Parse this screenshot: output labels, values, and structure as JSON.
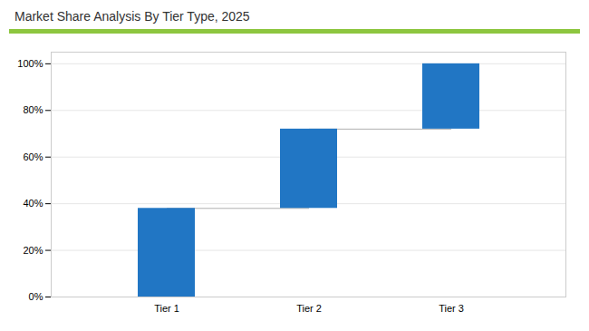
{
  "chart_data": {
    "type": "waterfall",
    "title": "Market Share Analysis By Tier Type, 2025",
    "categories": [
      "Tier 1",
      "Tier 2",
      "Tier 3"
    ],
    "values": [
      38,
      34,
      28
    ],
    "color": "#2176C4",
    "ylim": [
      0,
      105
    ],
    "yticks": [
      {
        "value": 0,
        "label": "0%"
      },
      {
        "value": 20,
        "label": "20%"
      },
      {
        "value": 40,
        "label": "40%"
      },
      {
        "value": 60,
        "label": "60%"
      },
      {
        "value": 80,
        "label": "80%"
      },
      {
        "value": 100,
        "label": "100%"
      }
    ],
    "grid": true
  }
}
